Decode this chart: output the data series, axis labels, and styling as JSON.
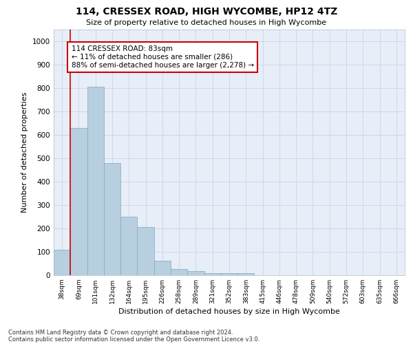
{
  "title": "114, CRESSEX ROAD, HIGH WYCOMBE, HP12 4TZ",
  "subtitle": "Size of property relative to detached houses in High Wycombe",
  "xlabel": "Distribution of detached houses by size in High Wycombe",
  "ylabel": "Number of detached properties",
  "categories": [
    "38sqm",
    "69sqm",
    "101sqm",
    "132sqm",
    "164sqm",
    "195sqm",
    "226sqm",
    "258sqm",
    "289sqm",
    "321sqm",
    "352sqm",
    "383sqm",
    "415sqm",
    "446sqm",
    "478sqm",
    "509sqm",
    "540sqm",
    "572sqm",
    "603sqm",
    "635sqm",
    "666sqm"
  ],
  "values": [
    108,
    630,
    805,
    478,
    250,
    205,
    62,
    25,
    18,
    10,
    8,
    10,
    0,
    0,
    0,
    0,
    0,
    0,
    0,
    0,
    0
  ],
  "bar_color": "#b8cfe0",
  "bar_edge_color": "#7aaac8",
  "property_line_x": 0.5,
  "annotation_text": "114 CRESSEX ROAD: 83sqm\n← 11% of detached houses are smaller (286)\n88% of semi-detached houses are larger (2,278) →",
  "annotation_box_color": "#ffffff",
  "annotation_box_edge_color": "#cc0000",
  "ylim": [
    0,
    1050
  ],
  "yticks": [
    0,
    100,
    200,
    300,
    400,
    500,
    600,
    700,
    800,
    900,
    1000
  ],
  "grid_color": "#ccd8e8",
  "plot_background": "#e8eef8",
  "footer_line1": "Contains HM Land Registry data © Crown copyright and database right 2024.",
  "footer_line2": "Contains public sector information licensed under the Open Government Licence v3.0."
}
